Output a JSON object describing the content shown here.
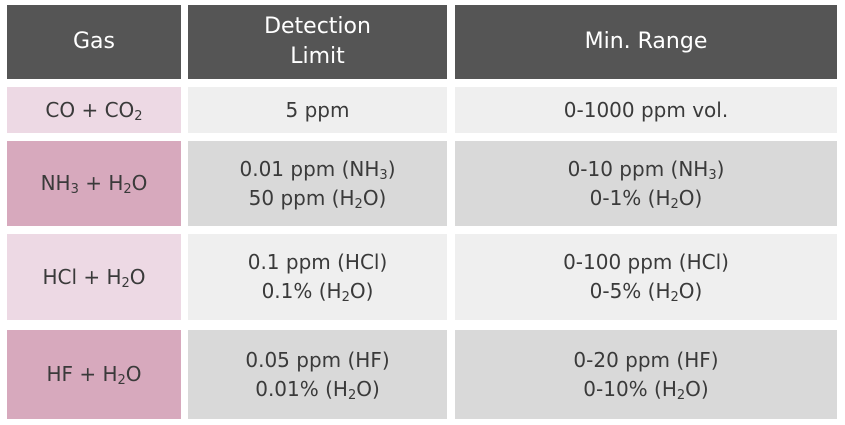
{
  "headers": {
    "gas": "Gas",
    "detection_line1": "Detection",
    "detection_line2": "Limit",
    "range": "Min. Range"
  },
  "rows": [
    {
      "gas": [
        "CO + CO",
        "2",
        ""
      ],
      "detection": [
        [
          "5 ppm",
          "",
          ""
        ]
      ],
      "range": [
        [
          "0-1000 ppm vol.",
          "",
          ""
        ]
      ]
    },
    {
      "gas": [
        "NH",
        "3",
        " + H",
        "2",
        "O"
      ],
      "detection": [
        [
          "0.01 ppm (NH",
          "3",
          ")"
        ],
        [
          "50 ppm (H",
          "2",
          "O)"
        ]
      ],
      "range": [
        [
          "0-10 ppm (NH",
          "3",
          ")"
        ],
        [
          "0-1% (H",
          "2",
          "O)"
        ]
      ]
    },
    {
      "gas": [
        "HCl + H",
        "2",
        "O"
      ],
      "detection": [
        [
          "0.1 ppm (HCl)",
          "",
          ""
        ],
        [
          "0.1% (H",
          "2",
          "O)"
        ]
      ],
      "range": [
        [
          "0-100 ppm (HCl)",
          "",
          ""
        ],
        [
          "0-5% (H",
          "2",
          "O)"
        ]
      ]
    },
    {
      "gas": [
        "HF + H",
        "2",
        "O"
      ],
      "detection": [
        [
          "0.05 ppm (HF)",
          "",
          ""
        ],
        [
          "0.01% (H",
          "2",
          "O)"
        ]
      ],
      "range": [
        [
          "0-20 ppm (HF)",
          "",
          ""
        ],
        [
          "0-10% (H",
          "2",
          "O)"
        ]
      ]
    }
  ]
}
